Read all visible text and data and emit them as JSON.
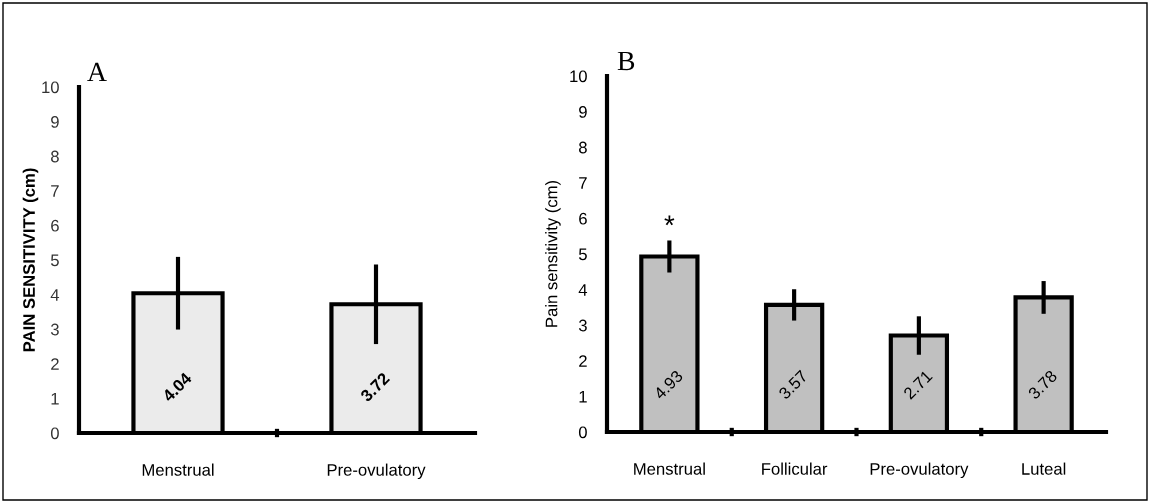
{
  "chart_data": [
    {
      "type": "bar",
      "title": "A",
      "ylabel": "PAIN SENSITIVITY (cm)",
      "categories": [
        "Menstrual",
        "Pre-ovulatory"
      ],
      "values": [
        4.04,
        3.72
      ],
      "errors": [
        1.05,
        1.15
      ],
      "color": "#ebebeb",
      "ylim": [
        0,
        10
      ],
      "yticks": [
        0,
        1,
        2,
        3,
        4,
        5,
        6,
        7,
        8,
        9,
        10
      ],
      "data_labels": true,
      "grid": false,
      "legend": false
    },
    {
      "type": "bar",
      "title": "B",
      "ylabel": "Pain sensitivity (cm)",
      "categories": [
        "Menstrual",
        "Follicular",
        "Pre-ovulatory",
        "Luteal"
      ],
      "values": [
        4.93,
        3.57,
        2.71,
        3.78
      ],
      "errors": [
        0.45,
        0.44,
        0.54,
        0.46
      ],
      "color": "#c0c0c0",
      "ylim": [
        0,
        10
      ],
      "yticks": [
        0,
        1,
        2,
        3,
        4,
        5,
        6,
        7,
        8,
        9,
        10
      ],
      "data_labels": true,
      "grid": false,
      "legend": false,
      "annotations": [
        "*"
      ]
    }
  ]
}
